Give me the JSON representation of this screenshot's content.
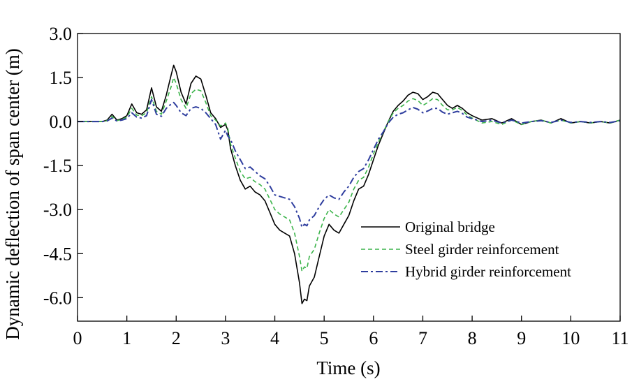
{
  "chart_data": {
    "type": "line",
    "title": "",
    "xlabel": "Time (s)",
    "ylabel": "Dynamic deflection of span center (m)",
    "xlim": [
      0,
      11
    ],
    "ylim": [
      -6.8,
      3.0
    ],
    "xticks": [
      0,
      1,
      2,
      3,
      4,
      5,
      6,
      7,
      8,
      9,
      10,
      11
    ],
    "xtick_labels": [
      "0",
      "1",
      "2",
      "3",
      "4",
      "5",
      "6",
      "7",
      "8",
      "9",
      "10",
      "11"
    ],
    "yticks": [
      3.0,
      1.5,
      0.0,
      -1.5,
      -3.0,
      -4.5,
      -6.0
    ],
    "ytick_labels": [
      "3.0",
      "1.5",
      "0.0",
      "-1.5",
      "-3.0",
      "-4.5",
      "-6.0"
    ],
    "grid": false,
    "legend_position": "bottom-right",
    "series": [
      {
        "name": "Original bridge",
        "color": "#000000",
        "dash": "solid",
        "x": [
          0,
          0.5,
          0.6,
          0.7,
          0.8,
          0.9,
          1.0,
          1.1,
          1.2,
          1.3,
          1.4,
          1.5,
          1.6,
          1.7,
          1.8,
          1.9,
          1.95,
          2.0,
          2.1,
          2.2,
          2.3,
          2.4,
          2.5,
          2.6,
          2.7,
          2.8,
          2.9,
          3.0,
          3.05,
          3.1,
          3.2,
          3.3,
          3.4,
          3.5,
          3.6,
          3.7,
          3.8,
          3.9,
          4.0,
          4.1,
          4.2,
          4.3,
          4.4,
          4.5,
          4.55,
          4.6,
          4.65,
          4.7,
          4.8,
          4.9,
          5.0,
          5.1,
          5.2,
          5.3,
          5.4,
          5.5,
          5.6,
          5.7,
          5.8,
          5.9,
          6.0,
          6.1,
          6.2,
          6.3,
          6.4,
          6.5,
          6.6,
          6.7,
          6.8,
          6.9,
          7.0,
          7.1,
          7.2,
          7.3,
          7.4,
          7.5,
          7.6,
          7.7,
          7.8,
          7.9,
          8.0,
          8.2,
          8.4,
          8.6,
          8.8,
          9.0,
          9.2,
          9.4,
          9.6,
          9.8,
          10.0,
          10.2,
          10.4,
          10.6,
          10.8,
          11.0
        ],
        "y": [
          0,
          0,
          0.05,
          0.25,
          0.05,
          0.1,
          0.2,
          0.6,
          0.3,
          0.25,
          0.4,
          1.15,
          0.5,
          0.35,
          0.9,
          1.6,
          1.92,
          1.7,
          1.0,
          0.6,
          1.3,
          1.55,
          1.45,
          0.9,
          0.3,
          0.1,
          -0.2,
          -0.1,
          -0.3,
          -0.9,
          -1.5,
          -2.0,
          -2.3,
          -2.2,
          -2.4,
          -2.5,
          -2.7,
          -3.1,
          -3.5,
          -3.7,
          -3.8,
          -3.9,
          -4.5,
          -5.5,
          -6.2,
          -6.05,
          -6.1,
          -5.6,
          -5.3,
          -4.6,
          -3.9,
          -3.5,
          -3.7,
          -3.8,
          -3.5,
          -3.2,
          -2.7,
          -2.3,
          -2.2,
          -1.8,
          -1.3,
          -0.8,
          -0.4,
          0.0,
          0.35,
          0.55,
          0.7,
          0.9,
          1.0,
          0.95,
          0.75,
          0.85,
          1.0,
          0.95,
          0.75,
          0.55,
          0.45,
          0.55,
          0.45,
          0.3,
          0.2,
          0.05,
          0.1,
          -0.05,
          0.1,
          -0.1,
          0.0,
          0.05,
          -0.05,
          0.1,
          -0.05,
          0.0,
          -0.05,
          0.0,
          -0.05,
          0.05
        ]
      },
      {
        "name": "Steel girder reinforcement",
        "color": "#3cb44b",
        "dash": "dashed",
        "x": [
          0,
          0.5,
          0.6,
          0.7,
          0.8,
          0.9,
          1.0,
          1.1,
          1.2,
          1.3,
          1.4,
          1.5,
          1.6,
          1.7,
          1.8,
          1.9,
          1.95,
          2.0,
          2.1,
          2.2,
          2.3,
          2.4,
          2.5,
          2.6,
          2.7,
          2.8,
          2.9,
          3.0,
          3.05,
          3.1,
          3.2,
          3.3,
          3.4,
          3.5,
          3.6,
          3.7,
          3.8,
          3.9,
          4.0,
          4.1,
          4.2,
          4.3,
          4.4,
          4.5,
          4.55,
          4.6,
          4.65,
          4.7,
          4.8,
          4.9,
          5.0,
          5.1,
          5.2,
          5.3,
          5.4,
          5.5,
          5.6,
          5.7,
          5.8,
          5.9,
          6.0,
          6.1,
          6.2,
          6.3,
          6.4,
          6.5,
          6.6,
          6.7,
          6.8,
          6.9,
          7.0,
          7.1,
          7.2,
          7.3,
          7.4,
          7.5,
          7.6,
          7.7,
          7.8,
          7.9,
          8.0,
          8.2,
          8.4,
          8.6,
          8.8,
          9.0,
          9.2,
          9.4,
          9.6,
          9.8,
          10.0,
          10.2,
          10.4,
          10.6,
          10.8,
          11.0
        ],
        "y": [
          0,
          0,
          0.03,
          0.18,
          0.03,
          0.08,
          0.15,
          0.45,
          0.22,
          0.2,
          0.3,
          0.85,
          0.35,
          0.25,
          0.7,
          1.2,
          1.5,
          1.3,
          0.75,
          0.45,
          0.95,
          1.1,
          1.05,
          0.65,
          0.2,
          0.05,
          -0.15,
          -0.05,
          -0.25,
          -0.75,
          -1.25,
          -1.7,
          -1.95,
          -1.9,
          -2.05,
          -2.15,
          -2.3,
          -2.65,
          -3.0,
          -3.15,
          -3.25,
          -3.35,
          -3.8,
          -4.6,
          -5.1,
          -4.95,
          -5.0,
          -4.6,
          -4.35,
          -3.8,
          -3.3,
          -3.0,
          -3.15,
          -3.25,
          -3.0,
          -2.75,
          -2.3,
          -2.0,
          -1.9,
          -1.55,
          -1.1,
          -0.7,
          -0.35,
          0.0,
          0.3,
          0.45,
          0.55,
          0.7,
          0.78,
          0.72,
          0.55,
          0.65,
          0.78,
          0.75,
          0.55,
          0.4,
          0.4,
          0.48,
          0.38,
          0.22,
          0.12,
          -0.05,
          0.0,
          -0.1,
          0.05,
          -0.1,
          0.0,
          0.05,
          -0.05,
          0.05,
          -0.05,
          0.0,
          -0.05,
          0.0,
          -0.05,
          0.05
        ]
      },
      {
        "name": "Hybrid girder reinforcement",
        "color": "#2e3d9e",
        "dash": "dashdot",
        "x": [
          0,
          0.5,
          0.6,
          0.7,
          0.8,
          0.9,
          1.0,
          1.1,
          1.2,
          1.3,
          1.4,
          1.5,
          1.6,
          1.7,
          1.8,
          1.9,
          1.95,
          2.0,
          2.1,
          2.2,
          2.3,
          2.4,
          2.5,
          2.6,
          2.7,
          2.8,
          2.9,
          3.0,
          3.05,
          3.1,
          3.2,
          3.3,
          3.4,
          3.5,
          3.6,
          3.7,
          3.8,
          3.9,
          4.0,
          4.1,
          4.2,
          4.3,
          4.4,
          4.5,
          4.55,
          4.6,
          4.65,
          4.7,
          4.8,
          4.9,
          5.0,
          5.1,
          5.2,
          5.3,
          5.4,
          5.5,
          5.6,
          5.7,
          5.8,
          5.9,
          6.0,
          6.1,
          6.2,
          6.3,
          6.4,
          6.5,
          6.6,
          6.7,
          6.8,
          6.9,
          7.0,
          7.1,
          7.2,
          7.3,
          7.4,
          7.5,
          7.6,
          7.7,
          7.8,
          7.9,
          8.0,
          8.2,
          8.4,
          8.6,
          8.8,
          9.0,
          9.2,
          9.4,
          9.6,
          9.8,
          10.0,
          10.2,
          10.4,
          10.6,
          10.8,
          11.0
        ],
        "y": [
          0,
          0,
          0.02,
          0.12,
          0.02,
          0.05,
          0.1,
          0.3,
          0.15,
          0.12,
          0.2,
          0.75,
          0.25,
          0.18,
          0.45,
          0.6,
          0.65,
          0.55,
          0.3,
          0.2,
          0.45,
          0.5,
          0.45,
          0.3,
          0.1,
          -0.1,
          -0.6,
          -0.3,
          -0.5,
          -0.6,
          -1.0,
          -1.3,
          -1.6,
          -1.55,
          -1.7,
          -1.85,
          -1.95,
          -2.2,
          -2.5,
          -2.55,
          -2.6,
          -2.65,
          -2.9,
          -3.3,
          -3.6,
          -3.5,
          -3.55,
          -3.35,
          -3.2,
          -2.9,
          -2.65,
          -2.5,
          -2.6,
          -2.65,
          -2.4,
          -2.2,
          -1.9,
          -1.7,
          -1.6,
          -1.3,
          -0.95,
          -0.6,
          -0.35,
          -0.05,
          0.15,
          0.25,
          0.3,
          0.4,
          0.48,
          0.42,
          0.3,
          0.36,
          0.45,
          0.45,
          0.32,
          0.25,
          0.3,
          0.35,
          0.28,
          0.15,
          0.1,
          0.0,
          0.05,
          -0.05,
          0.05,
          -0.05,
          0.0,
          0.03,
          -0.03,
          0.05,
          -0.03,
          0.0,
          -0.03,
          0.0,
          -0.03,
          0.03
        ]
      }
    ]
  }
}
